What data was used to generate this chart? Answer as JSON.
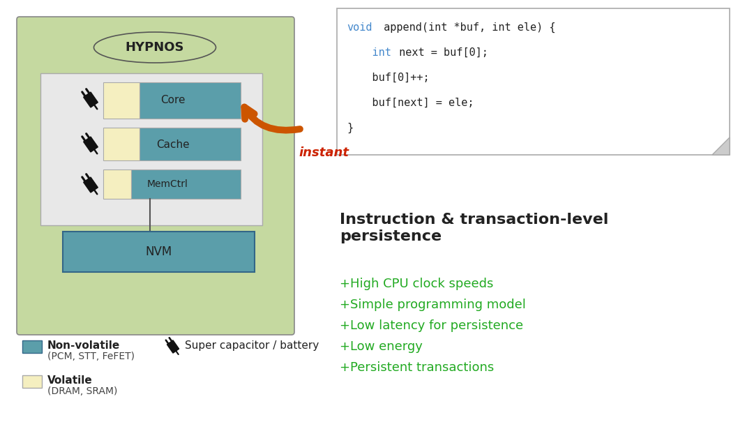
{
  "bg_color": "#ffffff",
  "hypnos_box_color": "#c5d9a0",
  "hypnos_box_edge": "#888888",
  "inner_box_color": "#e8e8e8",
  "inner_box_edge": "#aaaaaa",
  "teal_color": "#5b9eaa",
  "volatile_color": "#f5efc0",
  "nvm_box_edge": "#336688",
  "hypnos_label": "HYPNOS",
  "core_label": "Core",
  "cache_label": "Cache",
  "memctrl_label": "MemCtrl",
  "nvm_label": "NVM",
  "instant_label": "instant",
  "instant_color": "#cc2200",
  "arrow_color": "#cc5500",
  "bullet_color": "#22aa22",
  "code_color_blue": "#4488cc",
  "code_color_black": "#222222",
  "legend_nv_label": "Non-volatile",
  "legend_nv_sub": "(PCM, STT, FeFET)",
  "legend_v_label": "Volatile",
  "legend_v_sub": "(DRAM, SRAM)",
  "legend_cap_label": "Super capacitor / battery",
  "bullets": [
    "High CPU clock speeds",
    "Simple programming model",
    "Low latency for persistence",
    "Low energy",
    "Persistent transactions"
  ]
}
